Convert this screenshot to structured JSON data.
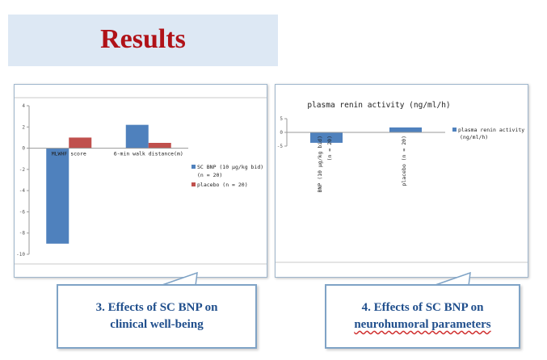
{
  "page": {
    "title": "Results",
    "title_color": "#b01218",
    "title_box_color": "#dde8f4"
  },
  "callouts": {
    "left": {
      "line1": "3. Effects of SC BNP on",
      "line2": "clinical well-being"
    },
    "right": {
      "line1": "4. Effects of SC BNP on",
      "line2": "neurohumoral parameters"
    }
  },
  "chart_data": [
    {
      "type": "bar",
      "title": "",
      "categories": [
        "MLWHF score",
        "6-min walk distance(m)"
      ],
      "series": [
        {
          "name": "SC BNP (10 µg/kg bid) (n = 20)",
          "color": "#4f81bd",
          "values": [
            -9,
            2.2
          ]
        },
        {
          "name": "placebo (n = 20)",
          "color": "#c0504d",
          "values": [
            1,
            0.5
          ]
        }
      ],
      "legend_lines": [
        [
          "SC BNP (10 µg/kg bid)",
          "(n = 20)"
        ],
        [
          "placebo (n = 20)"
        ]
      ],
      "yticks": [
        "4",
        "2",
        "0",
        "-2",
        "-4",
        "-6",
        "-8",
        "-10"
      ],
      "ylim": [
        -10,
        4
      ],
      "legend": "right"
    },
    {
      "type": "bar",
      "title": "plasma renin activity  (ng/ml/h)",
      "categories": [
        "BNP (10 µg/kg bid)  (n = 20)",
        "placebo (n = 20)"
      ],
      "category_lines": [
        [
          "BNP (10 µg/kg bid)",
          "(n = 20)"
        ],
        [
          "placebo (n = 20)"
        ]
      ],
      "series": [
        {
          "name": "plasma renin activity (ng/ml/h)",
          "color": "#4f81bd",
          "values": [
            -3.8,
            1.8
          ]
        }
      ],
      "legend_lines": [
        [
          "plasma renin activity",
          "(ng/ml/h)"
        ]
      ],
      "yticks": [
        "5",
        "0",
        "-5"
      ],
      "ylim": [
        -5,
        5
      ],
      "legend": "right"
    }
  ]
}
